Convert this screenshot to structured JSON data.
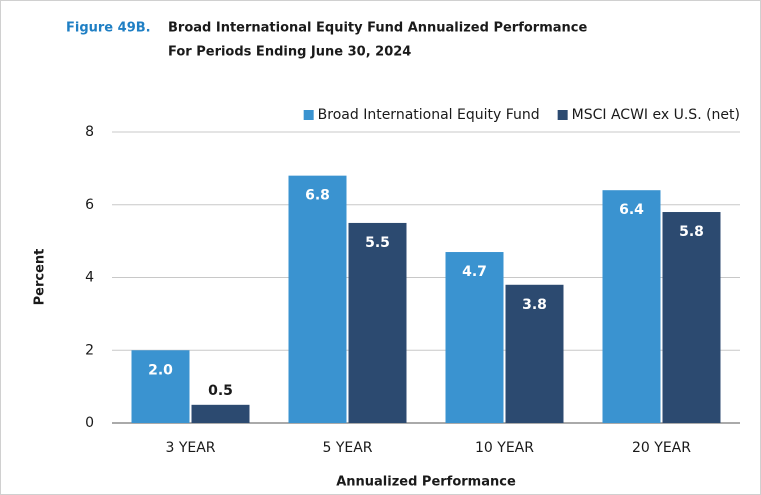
{
  "chart_data": {
    "type": "bar",
    "figure_label": "Figure 49B.",
    "title": "Broad International Equity Fund Annualized Performance",
    "subtitle": "For Periods Ending June 30, 2024",
    "x_label": "Annualized Performance",
    "y_label": "Percent",
    "categories": [
      "3 YEAR",
      "5 YEAR",
      "10 YEAR",
      "20 YEAR"
    ],
    "series": [
      {
        "name": "Broad International Equity Fund",
        "color": "#3a93d0",
        "values": [
          2.0,
          6.8,
          4.7,
          6.4
        ],
        "value_labels": [
          "2.0",
          "6.8",
          "4.7",
          "6.4"
        ]
      },
      {
        "name": "MSCI ACWI ex U.S. (net)",
        "color": "#2c4a70",
        "values": [
          0.5,
          5.5,
          3.8,
          5.8
        ],
        "value_labels": [
          "0.5",
          "5.5",
          "3.8",
          "5.8"
        ]
      }
    ],
    "ylim": [
      0,
      8
    ],
    "yticks": [
      0,
      2,
      4,
      6,
      8
    ],
    "grid": true,
    "legend": "top-right"
  }
}
